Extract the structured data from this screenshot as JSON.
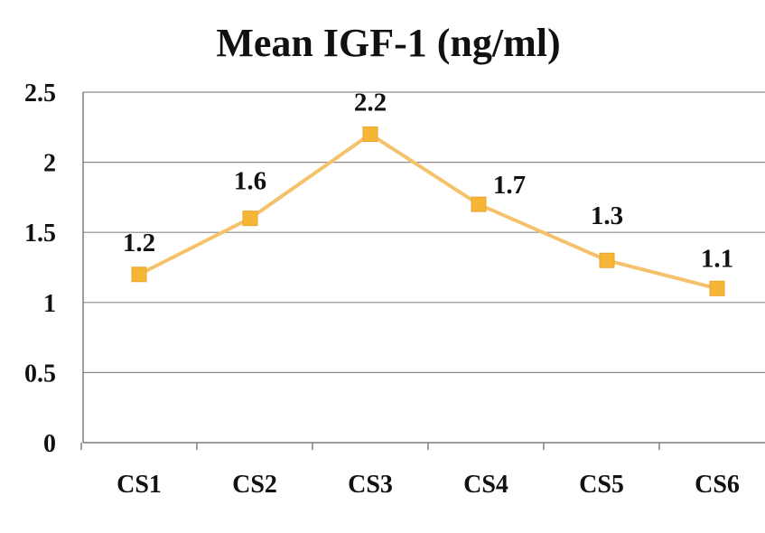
{
  "chart_data": {
    "type": "line",
    "title": "Mean IGF-1 (ng/ml)",
    "xlabel": "",
    "ylabel": "",
    "categories": [
      "CS1",
      "CS2",
      "CS3",
      "CS4",
      "CS5",
      "CS6"
    ],
    "series": [
      {
        "name": "Mean IGF-1",
        "values": [
          1.2,
          1.6,
          2.2,
          1.7,
          1.3,
          1.1
        ],
        "data_labels": [
          "1.2",
          "1.6",
          "2.2",
          "1.7",
          "1.3",
          "1.1"
        ],
        "color": "#f5c26b",
        "marker": "square",
        "marker_color": "#f5b536"
      }
    ],
    "ylim": [
      0,
      2.5
    ],
    "yticks": [
      0,
      0.5,
      1,
      1.5,
      2,
      2.5
    ],
    "ytick_labels": [
      "0",
      "0.5",
      "1",
      "1.5",
      "2",
      "2.5"
    ],
    "grid": true,
    "legend": "none",
    "colors": {
      "grid": "#8c8c8c",
      "axis": "#7f7f7f",
      "text": "#111111"
    }
  }
}
